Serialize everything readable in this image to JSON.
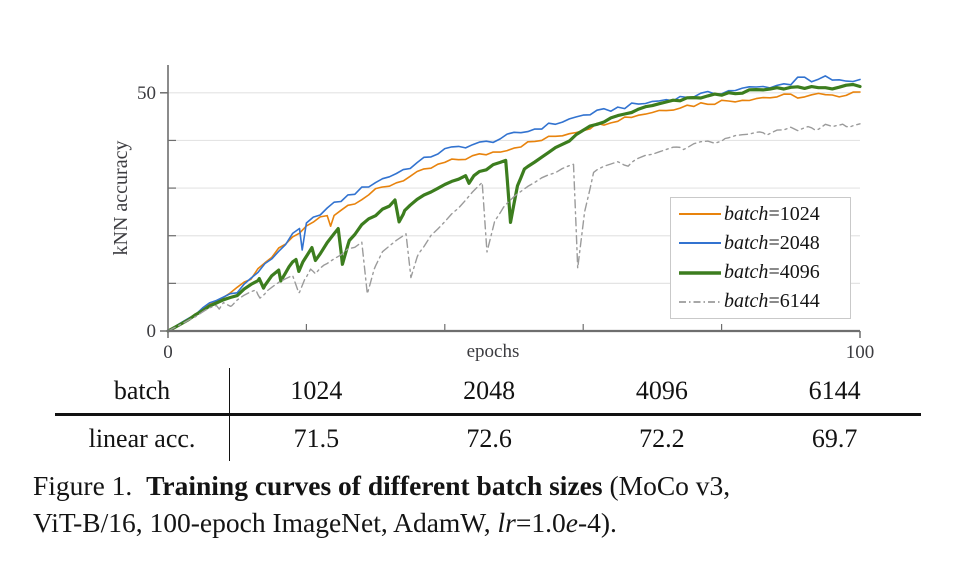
{
  "chart_data": {
    "type": "line",
    "title": "",
    "xlabel": "epochs",
    "ylabel": "kNN accuracy",
    "xlim": [
      0,
      100
    ],
    "ylim": [
      0,
      56
    ],
    "x_ticks": [
      0,
      20,
      40,
      60,
      80,
      100
    ],
    "x_tick_labels": [
      "0",
      "",
      "",
      "",
      "",
      "100"
    ],
    "y_ticks": [
      0,
      10,
      20,
      30,
      40,
      50
    ],
    "y_tick_labels": [
      "0",
      "",
      "",
      "",
      "",
      "50"
    ],
    "grid": "horizontal",
    "legend_position": "lower right",
    "axis_color": "#6e6e6e",
    "grid_color": "#e4e4e4",
    "label_color": "#3c3c40",
    "series": [
      {
        "name": "batch=1024",
        "color": "#e8830d",
        "width": 1.6,
        "dash": "",
        "noise": 0.5,
        "points": [
          [
            0,
            0
          ],
          [
            2,
            1.7
          ],
          [
            4,
            3.5
          ],
          [
            6,
            5.6
          ],
          [
            8,
            7.2
          ],
          [
            10,
            8.7
          ],
          [
            12,
            11.2
          ],
          [
            14,
            14
          ],
          [
            16,
            17
          ],
          [
            18,
            19.6
          ],
          [
            20,
            21.8
          ],
          [
            22,
            23.8
          ],
          [
            23,
            24.3
          ],
          [
            23.5,
            22
          ],
          [
            24,
            24.6
          ],
          [
            26,
            26.4
          ],
          [
            28,
            27.9
          ],
          [
            30,
            29.4
          ],
          [
            32,
            30.6
          ],
          [
            34,
            31.8
          ],
          [
            36,
            33
          ],
          [
            38,
            34.2
          ],
          [
            40,
            35.3
          ],
          [
            42,
            36
          ],
          [
            44,
            36.6
          ],
          [
            46,
            37.2
          ],
          [
            48,
            37.9
          ],
          [
            50,
            38.6
          ],
          [
            52,
            39.4
          ],
          [
            54,
            40.1
          ],
          [
            56,
            40.9
          ],
          [
            58,
            41.6
          ],
          [
            60,
            42.4
          ],
          [
            62,
            43.3
          ],
          [
            64,
            44.1
          ],
          [
            66,
            44.8
          ],
          [
            68,
            45.4
          ],
          [
            70,
            46
          ],
          [
            72,
            46.6
          ],
          [
            74,
            47.1
          ],
          [
            76,
            47.5
          ],
          [
            78,
            47.9
          ],
          [
            80,
            48.2
          ],
          [
            82,
            48.5
          ],
          [
            84,
            48.8
          ],
          [
            86,
            49
          ],
          [
            88,
            49.2
          ],
          [
            90,
            49.4
          ],
          [
            92,
            49.1
          ],
          [
            94,
            49.6
          ],
          [
            96,
            49.1
          ],
          [
            98,
            49.9
          ],
          [
            100,
            50.4
          ]
        ]
      },
      {
        "name": "batch=2048",
        "color": "#3273d0",
        "width": 1.6,
        "dash": "",
        "noise": 0.5,
        "points": [
          [
            0,
            0
          ],
          [
            2,
            1.8
          ],
          [
            4,
            3.6
          ],
          [
            6,
            5.7
          ],
          [
            8,
            7.1
          ],
          [
            10,
            8.5
          ],
          [
            12,
            11
          ],
          [
            14,
            13.8
          ],
          [
            16,
            16.8
          ],
          [
            18,
            20
          ],
          [
            19,
            21.3
          ],
          [
            19.4,
            17
          ],
          [
            20,
            22.3
          ],
          [
            22,
            24.8
          ],
          [
            24,
            26.6
          ],
          [
            26,
            28.3
          ],
          [
            28,
            29.8
          ],
          [
            30,
            31.3
          ],
          [
            32,
            32.5
          ],
          [
            34,
            33.8
          ],
          [
            36,
            35.2
          ],
          [
            38,
            36.8
          ],
          [
            40,
            38
          ],
          [
            42,
            38.6
          ],
          [
            44,
            39.1
          ],
          [
            46,
            39.6
          ],
          [
            48,
            40.4
          ],
          [
            50,
            41.3
          ],
          [
            52,
            42
          ],
          [
            54,
            42.8
          ],
          [
            56,
            43.6
          ],
          [
            58,
            44.4
          ],
          [
            60,
            45.3
          ],
          [
            62,
            45.9
          ],
          [
            64,
            46.5
          ],
          [
            66,
            47.1
          ],
          [
            68,
            47.6
          ],
          [
            70,
            48.1
          ],
          [
            72,
            48.6
          ],
          [
            74,
            49
          ],
          [
            76,
            49.4
          ],
          [
            78,
            49.8
          ],
          [
            80,
            50.2
          ],
          [
            82,
            50.6
          ],
          [
            84,
            51
          ],
          [
            86,
            51.2
          ],
          [
            88,
            51.6
          ],
          [
            90,
            52
          ],
          [
            91,
            53.5
          ],
          [
            93,
            52.2
          ],
          [
            95,
            53.2
          ],
          [
            97,
            52.4
          ],
          [
            100,
            52.7
          ]
        ]
      },
      {
        "name": "batch=4096",
        "color": "#3c7d1e",
        "width": 3.2,
        "dash": "",
        "noise": 0.3,
        "points": [
          [
            0,
            0
          ],
          [
            2,
            1.6
          ],
          [
            4,
            3.3
          ],
          [
            6,
            5.2
          ],
          [
            8,
            6.5
          ],
          [
            10,
            7.5
          ],
          [
            12,
            9.6
          ],
          [
            13.2,
            11
          ],
          [
            13.8,
            9
          ],
          [
            15,
            11.5
          ],
          [
            16,
            12.5
          ],
          [
            16.3,
            10.5
          ],
          [
            17.5,
            13.5
          ],
          [
            18.5,
            15
          ],
          [
            18.9,
            12.5
          ],
          [
            19.5,
            14.5
          ],
          [
            20.8,
            17.5
          ],
          [
            21.3,
            14.8
          ],
          [
            23,
            18.8
          ],
          [
            24.6,
            21.5
          ],
          [
            25.2,
            14
          ],
          [
            26.2,
            19
          ],
          [
            28,
            22.3
          ],
          [
            30,
            24.5
          ],
          [
            32,
            26.5
          ],
          [
            32.8,
            27.5
          ],
          [
            33.4,
            22.9
          ],
          [
            34.2,
            25.3
          ],
          [
            36,
            27.5
          ],
          [
            38,
            29.2
          ],
          [
            40,
            30.8
          ],
          [
            42,
            32.1
          ],
          [
            43,
            32.6
          ],
          [
            43.5,
            31
          ],
          [
            44.2,
            32.6
          ],
          [
            46,
            34
          ],
          [
            48,
            35.3
          ],
          [
            48.8,
            35.8
          ],
          [
            49.5,
            22.8
          ],
          [
            50.5,
            30.5
          ],
          [
            51.5,
            34
          ],
          [
            53,
            35.7
          ],
          [
            55,
            37.4
          ],
          [
            57,
            39.1
          ],
          [
            59,
            41
          ],
          [
            61,
            42.8
          ],
          [
            63,
            44
          ],
          [
            65,
            45.1
          ],
          [
            67,
            46
          ],
          [
            69,
            46.9
          ],
          [
            71,
            47.6
          ],
          [
            73,
            48.2
          ],
          [
            75,
            48.7
          ],
          [
            77,
            49.1
          ],
          [
            79,
            49.5
          ],
          [
            81,
            49.8
          ],
          [
            83,
            50.2
          ],
          [
            85,
            50.5
          ],
          [
            87,
            50.7
          ],
          [
            89,
            50.9
          ],
          [
            91,
            51.1
          ],
          [
            93,
            51.2
          ],
          [
            95,
            51
          ],
          [
            97,
            51.2
          ],
          [
            100,
            51.6
          ]
        ]
      },
      {
        "name": "batch=6144",
        "color": "#9b9b9b",
        "width": 1.4,
        "dash": "8 4 2 4",
        "noise": 0.22,
        "points": [
          [
            0,
            0
          ],
          [
            2,
            1.5
          ],
          [
            4,
            3
          ],
          [
            5,
            3.9
          ],
          [
            6,
            4.8
          ],
          [
            7,
            5.5
          ],
          [
            7.4,
            4.6
          ],
          [
            8,
            5.8
          ],
          [
            9.2,
            5.3
          ],
          [
            10,
            6.6
          ],
          [
            11,
            7.4
          ],
          [
            12,
            8.2
          ],
          [
            12.7,
            8.6
          ],
          [
            13.3,
            6.9
          ],
          [
            14.2,
            8.3
          ],
          [
            15,
            9.3
          ],
          [
            16,
            10.2
          ],
          [
            17,
            11
          ],
          [
            18,
            11.8
          ],
          [
            18.9,
            8
          ],
          [
            19.8,
            11
          ],
          [
            20.6,
            13
          ],
          [
            21.3,
            12
          ],
          [
            22.5,
            13.8
          ],
          [
            24,
            15.3
          ],
          [
            26,
            17
          ],
          [
            28,
            18.5
          ],
          [
            28.8,
            7.8
          ],
          [
            29.8,
            13
          ],
          [
            31,
            16.5
          ],
          [
            33,
            19.2
          ],
          [
            34.4,
            20.4
          ],
          [
            35.1,
            11.2
          ],
          [
            36.2,
            16.2
          ],
          [
            38,
            20
          ],
          [
            40,
            23
          ],
          [
            42,
            26
          ],
          [
            44,
            29.3
          ],
          [
            45.4,
            31.2
          ],
          [
            46.1,
            16.6
          ],
          [
            47.2,
            23
          ],
          [
            48.5,
            26
          ],
          [
            50,
            28.3
          ],
          [
            52,
            30.3
          ],
          [
            54,
            32
          ],
          [
            56,
            33.4
          ],
          [
            58,
            34.7
          ],
          [
            58.6,
            35
          ],
          [
            59.2,
            13.2
          ],
          [
            60.2,
            25
          ],
          [
            61.5,
            33.3
          ],
          [
            63,
            34.4
          ],
          [
            65,
            35.4
          ],
          [
            66.5,
            34.6
          ],
          [
            67.5,
            35.9
          ],
          [
            70,
            37.3
          ],
          [
            72,
            38.1
          ],
          [
            73.5,
            38.6
          ],
          [
            74.5,
            38.1
          ],
          [
            76,
            39.3
          ],
          [
            78,
            39.9
          ],
          [
            79,
            39.4
          ],
          [
            80.5,
            40.4
          ],
          [
            82,
            40.9
          ],
          [
            84,
            41.4
          ],
          [
            85.5,
            41.8
          ],
          [
            86.5,
            41.1
          ],
          [
            88,
            42.2
          ],
          [
            90,
            42.6
          ],
          [
            91,
            42.1
          ],
          [
            92.5,
            42.9
          ],
          [
            93.5,
            42.2
          ],
          [
            95,
            43.2
          ],
          [
            96,
            42.7
          ],
          [
            97.5,
            43.4
          ],
          [
            98.5,
            42.8
          ],
          [
            100,
            43.7
          ]
        ]
      }
    ]
  },
  "table": {
    "rows": [
      {
        "label": "batch",
        "values": [
          "1024",
          "2048",
          "4096",
          "6144"
        ]
      },
      {
        "label": "linear acc.",
        "values": [
          "71.5",
          "72.6",
          "72.2",
          "69.7"
        ]
      }
    ]
  },
  "caption": {
    "segments": [
      {
        "text": "Figure 1.  ",
        "style": "normal"
      },
      {
        "text": "Training curves of different batch sizes",
        "style": "bold"
      },
      {
        "text": " (MoCo v3,\nViT-B/16, 100-epoch ImageNet, AdamW, ",
        "style": "normal"
      },
      {
        "text": "lr",
        "style": "italic"
      },
      {
        "text": "=1.0",
        "style": "normal"
      },
      {
        "text": "e",
        "style": "italic"
      },
      {
        "text": "-4).",
        "style": "normal"
      }
    ]
  }
}
